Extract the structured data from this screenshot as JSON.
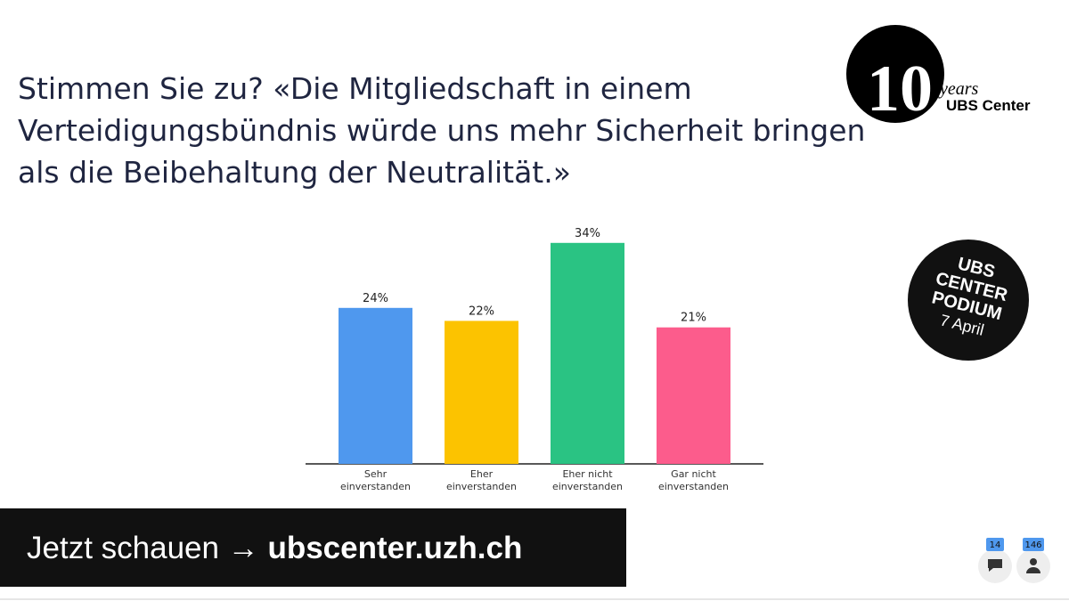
{
  "header": {
    "title": [
      "Stimmen Sie zu? «Die Mitgliedschaft in einem",
      "Verteidigungsbündnis würde uns mehr Sicherheit bringen",
      "als die Beibehaltung der Neutralität.»"
    ]
  },
  "logo": {
    "number": "10",
    "years": "years",
    "name": "UBS Center"
  },
  "badge": {
    "lines": [
      "UBS",
      "CENTER",
      "PODIUM"
    ],
    "date": "7 April"
  },
  "banner": {
    "lead": "Jetzt schauen →",
    "url": "ubscenter.uzh.ch"
  },
  "counters": {
    "comments": "14",
    "participants": "146"
  },
  "chart_data": {
    "type": "bar",
    "categories": [
      [
        "Sehr",
        "einverstanden"
      ],
      [
        "Eher",
        "einverstanden"
      ],
      [
        "Eher nicht",
        "einverstanden"
      ],
      [
        "Gar nicht",
        "einverstanden"
      ]
    ],
    "values": [
      24,
      22,
      34,
      21
    ],
    "value_labels": [
      "24%",
      "22%",
      "34%",
      "21%"
    ],
    "colors": [
      "#4f98ee",
      "#fcc300",
      "#2ac383",
      "#fc5c8c"
    ]
  }
}
